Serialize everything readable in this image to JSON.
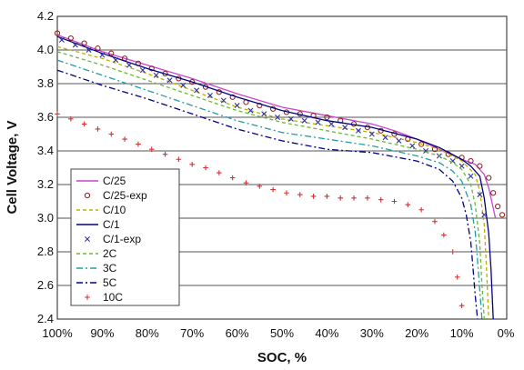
{
  "chart_data": {
    "type": "line",
    "title": "",
    "xlabel": "SOC, %",
    "ylabel": "Cell Voltage, V",
    "xlim": [
      100,
      0
    ],
    "ylim": [
      2.4,
      4.2
    ],
    "x_ticks": [
      100,
      90,
      80,
      70,
      60,
      50,
      40,
      30,
      20,
      10,
      0
    ],
    "x_tick_labels": [
      "100%",
      "90%",
      "80%",
      "70%",
      "60%",
      "50%",
      "40%",
      "30%",
      "20%",
      "10%",
      "0%"
    ],
    "y_ticks": [
      2.4,
      2.6,
      2.8,
      3.0,
      3.2,
      3.4,
      3.6,
      3.8,
      4.0,
      4.2
    ],
    "y_tick_labels": [
      "2.4",
      "2.6",
      "2.8",
      "3.0",
      "3.2",
      "3.4",
      "3.6",
      "3.8",
      "4.0",
      "4.2"
    ],
    "grid": "horizontal",
    "legend_position": "bottom-left",
    "series": [
      {
        "name": "C/25",
        "style": "solid",
        "marker": "none",
        "color": "#cc44cc",
        "x": [
          100,
          90,
          80,
          70,
          60,
          50,
          40,
          30,
          25,
          20,
          15,
          10,
          7,
          5,
          4,
          3,
          2.5
        ],
        "y": [
          4.09,
          3.99,
          3.91,
          3.83,
          3.74,
          3.66,
          3.61,
          3.56,
          3.52,
          3.47,
          3.41,
          3.35,
          3.32,
          3.26,
          3.18,
          3.06,
          3.0
        ]
      },
      {
        "name": "C/25-exp",
        "style": "none",
        "marker": "circle",
        "color": "#8b1a1a",
        "x": [
          100,
          97,
          94,
          91,
          88,
          85,
          82,
          79,
          76,
          73,
          70,
          67,
          64,
          61,
          58,
          55,
          52,
          49,
          46,
          43,
          40,
          37,
          34,
          31,
          28,
          25,
          22,
          19,
          16,
          13,
          10,
          8,
          6,
          4,
          3,
          2,
          1
        ],
        "y": [
          4.1,
          4.07,
          4.04,
          4.01,
          3.98,
          3.95,
          3.92,
          3.89,
          3.86,
          3.83,
          3.81,
          3.78,
          3.75,
          3.72,
          3.69,
          3.67,
          3.65,
          3.63,
          3.62,
          3.61,
          3.6,
          3.58,
          3.56,
          3.54,
          3.52,
          3.5,
          3.47,
          3.44,
          3.41,
          3.38,
          3.36,
          3.34,
          3.31,
          3.24,
          3.15,
          3.07,
          3.02
        ]
      },
      {
        "name": "C/10",
        "style": "dashed",
        "marker": "none",
        "color": "#b8b000",
        "x": [
          100,
          90,
          80,
          70,
          60,
          50,
          40,
          30,
          20,
          15,
          10,
          7,
          6,
          5,
          4.5,
          4
        ],
        "y": [
          4.02,
          3.95,
          3.86,
          3.76,
          3.66,
          3.59,
          3.55,
          3.51,
          3.45,
          3.41,
          3.34,
          3.26,
          3.16,
          2.96,
          2.7,
          2.4
        ]
      },
      {
        "name": "C/1",
        "style": "solid",
        "marker": "none",
        "color": "#000080",
        "x": [
          100,
          90,
          80,
          70,
          60,
          50,
          40,
          30,
          20,
          15,
          10,
          8,
          6,
          5,
          4,
          3.5,
          3
        ],
        "y": [
          4.08,
          3.98,
          3.89,
          3.81,
          3.72,
          3.64,
          3.58,
          3.54,
          3.47,
          3.42,
          3.35,
          3.31,
          3.25,
          3.12,
          2.91,
          2.7,
          2.4
        ]
      },
      {
        "name": "C/1-exp",
        "style": "none",
        "marker": "x",
        "color": "#333399",
        "x": [
          99,
          96,
          93,
          90,
          87,
          84,
          81,
          78,
          75,
          72,
          69,
          66,
          63,
          60,
          57,
          54,
          51,
          48,
          45,
          42,
          39,
          36,
          33,
          30,
          27,
          24,
          21,
          18,
          15,
          12,
          10,
          8,
          6,
          5
        ],
        "y": [
          4.06,
          4.03,
          4.0,
          3.97,
          3.94,
          3.91,
          3.88,
          3.85,
          3.82,
          3.79,
          3.76,
          3.73,
          3.7,
          3.67,
          3.64,
          3.62,
          3.6,
          3.59,
          3.58,
          3.57,
          3.56,
          3.54,
          3.52,
          3.5,
          3.48,
          3.46,
          3.43,
          3.4,
          3.37,
          3.34,
          3.31,
          3.25,
          3.14,
          3.02
        ]
      },
      {
        "name": "2C",
        "style": "dashed",
        "marker": "none",
        "color": "#66bb33",
        "x": [
          100,
          90,
          80,
          70,
          60,
          50,
          40,
          30,
          20,
          15,
          12,
          10,
          8,
          7,
          6,
          5.5,
          5
        ],
        "y": [
          3.99,
          3.91,
          3.82,
          3.73,
          3.64,
          3.57,
          3.52,
          3.47,
          3.41,
          3.37,
          3.33,
          3.29,
          3.2,
          3.08,
          2.85,
          2.6,
          2.4
        ]
      },
      {
        "name": "3C",
        "style": "dashdot",
        "marker": "none",
        "color": "#1f9fa0",
        "x": [
          100,
          90,
          80,
          70,
          60,
          50,
          40,
          30,
          20,
          15,
          12,
          10,
          8,
          7,
          6.5,
          6,
          5.5
        ],
        "y": [
          3.94,
          3.85,
          3.76,
          3.67,
          3.58,
          3.51,
          3.47,
          3.43,
          3.37,
          3.33,
          3.28,
          3.22,
          3.08,
          2.92,
          2.75,
          2.57,
          2.4
        ]
      },
      {
        "name": "5C",
        "style": "dashdot",
        "marker": "none",
        "color": "#000088",
        "x": [
          100,
          90,
          80,
          70,
          60,
          50,
          40,
          30,
          20,
          15,
          12,
          10,
          9,
          8,
          7.5,
          7,
          6.5
        ],
        "y": [
          3.88,
          3.79,
          3.71,
          3.62,
          3.53,
          3.46,
          3.41,
          3.39,
          3.34,
          3.29,
          3.22,
          3.12,
          3.02,
          2.86,
          2.7,
          2.54,
          2.4
        ]
      },
      {
        "name": "10C",
        "style": "none",
        "marker": "plus",
        "color": "#d43333",
        "x": [
          100,
          97,
          94,
          91,
          88,
          85,
          82,
          79,
          76,
          73,
          70,
          67,
          64,
          61,
          58,
          55,
          52,
          49,
          46,
          43,
          40,
          37,
          34,
          31,
          28,
          25,
          22,
          19,
          16,
          14,
          12,
          11,
          10
        ],
        "y": [
          3.62,
          3.59,
          3.56,
          3.53,
          3.5,
          3.47,
          3.44,
          3.41,
          3.38,
          3.35,
          3.32,
          3.3,
          3.27,
          3.24,
          3.21,
          3.19,
          3.17,
          3.15,
          3.14,
          3.13,
          3.13,
          3.12,
          3.12,
          3.12,
          3.11,
          3.1,
          3.08,
          3.05,
          2.98,
          2.9,
          2.8,
          2.65,
          2.48
        ]
      }
    ]
  }
}
